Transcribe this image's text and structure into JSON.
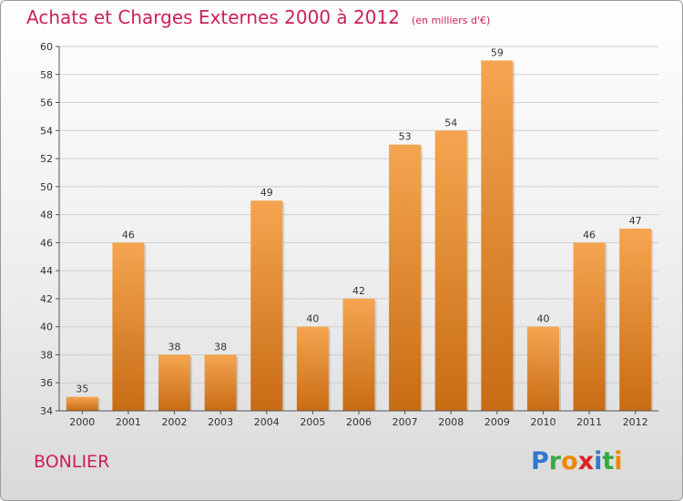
{
  "title": "Achats et Charges Externes 2000 à 2012",
  "subtitle": "(en milliers d'€)",
  "location": "BONLIER",
  "logo": {
    "letters": [
      "P",
      "r",
      "o",
      "x",
      "i",
      "t",
      "i"
    ],
    "colors": [
      "#3377cc",
      "#33aa44",
      "#ee8800",
      "#dd2222",
      "#3377cc",
      "#33aa44",
      "#ee8800"
    ]
  },
  "colors": {
    "bar_top": "#f5a550",
    "bar_bottom": "#c86c14",
    "title": "#cc2255",
    "grid": "#cfcfcf"
  },
  "chart_data": {
    "type": "bar",
    "categories": [
      "2000",
      "2001",
      "2002",
      "2003",
      "2004",
      "2005",
      "2006",
      "2007",
      "2008",
      "2009",
      "2010",
      "2011",
      "2012"
    ],
    "values": [
      35,
      46,
      38,
      38,
      49,
      40,
      42,
      53,
      54,
      59,
      40,
      46,
      47
    ],
    "ylim": [
      34,
      60
    ],
    "yticks": [
      34,
      36,
      38,
      40,
      42,
      44,
      46,
      48,
      50,
      52,
      54,
      56,
      58,
      60
    ],
    "grid": true
  }
}
